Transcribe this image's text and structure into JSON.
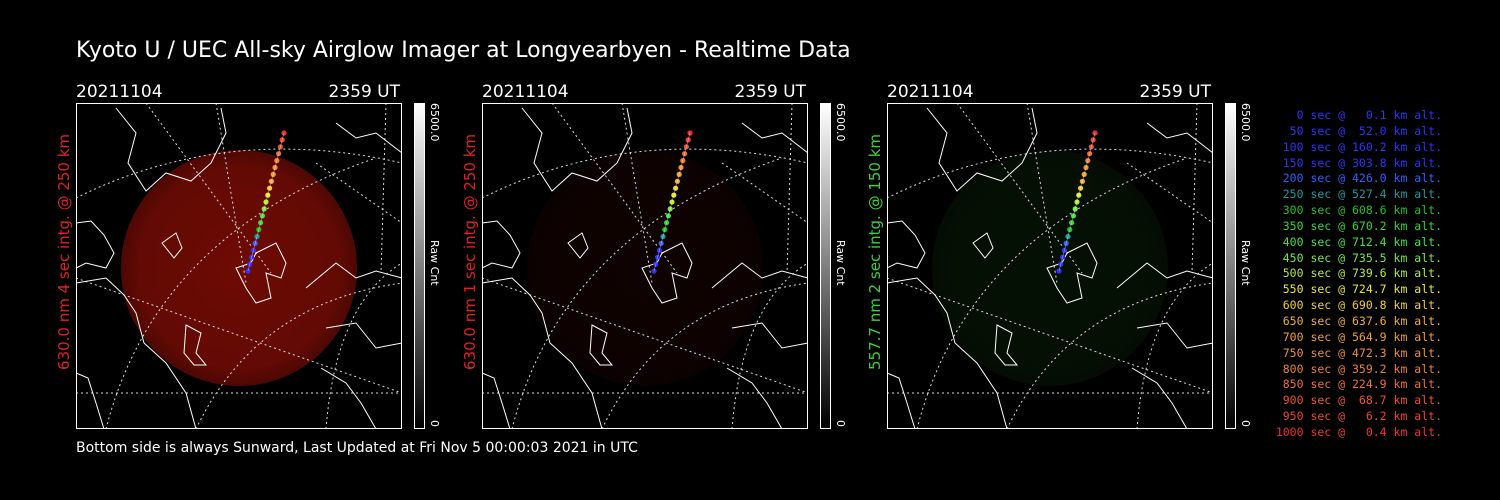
{
  "title": "Kyoto U / UEC All-sky Airglow Imager at Longyearbyen - Realtime Data",
  "footer": "Bottom side is always Sunward, Last Updated at Fri Nov  5 00:00:03 2021 in UTC",
  "panels": [
    {
      "date": "20211104",
      "time": "2359 UT",
      "side_label": "630.0 nm 4 sec intg. @ 250 km",
      "side_color": "#e02020",
      "cbar_max": "6500.0",
      "cbar_min": "0",
      "cbar_label": "Raw Cnt",
      "glow": "#7a0c05",
      "glow_level": 0.9
    },
    {
      "date": "20211104",
      "time": "2359 UT",
      "side_label": "630.0 nm 1 sec intg. @ 250 km",
      "side_color": "#e02020",
      "cbar_max": "6500.0",
      "cbar_min": "0",
      "cbar_label": "Raw Cnt",
      "glow": "#2a0504",
      "glow_level": 0.35
    },
    {
      "date": "20211104",
      "time": "2359 UT",
      "side_label": "557.7 nm 2 sec intg. @ 150 km",
      "side_color": "#3ad13a",
      "cbar_max": "6500.0",
      "cbar_min": "0",
      "cbar_label": "Raw Cnt",
      "glow": "#0d2a0b",
      "glow_level": 0.4
    }
  ],
  "legend": [
    {
      "text": "0 sec @   0.1 km alt.",
      "color": "#3030ff"
    },
    {
      "text": "50 sec @  52.0 km alt.",
      "color": "#3030ff"
    },
    {
      "text": "100 sec @ 160.2 km alt.",
      "color": "#3030ff"
    },
    {
      "text": "150 sec @ 303.8 km alt.",
      "color": "#3030ff"
    },
    {
      "text": "200 sec @ 426.0 km alt.",
      "color": "#3060ff"
    },
    {
      "text": "250 sec @ 527.4 km alt.",
      "color": "#1a9aa0"
    },
    {
      "text": "300 sec @ 608.6 km alt.",
      "color": "#22c022"
    },
    {
      "text": "350 sec @ 670.2 km alt.",
      "color": "#33d633"
    },
    {
      "text": "400 sec @ 712.4 km alt.",
      "color": "#44e044"
    },
    {
      "text": "450 sec @ 735.5 km alt.",
      "color": "#77e844"
    },
    {
      "text": "500 sec @ 739.6 km alt.",
      "color": "#b6ec33"
    },
    {
      "text": "550 sec @ 724.7 km alt.",
      "color": "#e8e830"
    },
    {
      "text": "600 sec @ 690.8 km alt.",
      "color": "#f0d030"
    },
    {
      "text": "650 sec @ 637.6 km alt.",
      "color": "#f0b030"
    },
    {
      "text": "700 sec @ 564.9 km alt.",
      "color": "#f0a030"
    },
    {
      "text": "750 sec @ 472.3 km alt.",
      "color": "#f09030"
    },
    {
      "text": "800 sec @ 359.2 km alt.",
      "color": "#f08030"
    },
    {
      "text": "850 sec @ 224.9 km alt.",
      "color": "#f07030"
    },
    {
      "text": "900 sec @  68.7 km alt.",
      "color": "#f05030"
    },
    {
      "text": "950 sec @   6.2 km alt.",
      "color": "#f04030"
    },
    {
      "text": "1000 sec @   0.4 km alt.",
      "color": "#f03030"
    }
  ]
}
